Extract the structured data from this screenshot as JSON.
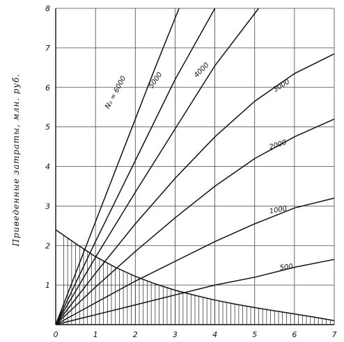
{
  "chart_data": {
    "type": "line",
    "ylabel": "Приведенные затраты, млн. руб.",
    "xlabel": "",
    "xlim": [
      0,
      7
    ],
    "ylim": [
      0,
      8
    ],
    "x_ticks": [
      0,
      1,
      2,
      3,
      4,
      5,
      6,
      7
    ],
    "y_tick_labels": [
      "",
      "1",
      "2",
      "3",
      "4",
      "5",
      "6",
      "7",
      "8"
    ],
    "grid": true,
    "series": [
      {
        "name": "N₀ = 6000",
        "x": [
          0,
          0.5,
          1,
          1.5,
          2,
          2.5,
          3.1
        ],
        "y": [
          0,
          1.3,
          2.6,
          3.9,
          5.2,
          6.5,
          8.0
        ]
      },
      {
        "name": "5000",
        "x": [
          0,
          0.5,
          1,
          2,
          3,
          4.0
        ],
        "y": [
          0,
          1.05,
          2.1,
          4.15,
          6.2,
          8.0
        ]
      },
      {
        "name": "4000",
        "x": [
          0,
          0.5,
          1,
          2,
          3,
          4,
          5.1
        ],
        "y": [
          0,
          0.85,
          1.7,
          3.35,
          4.95,
          6.55,
          8.0
        ]
      },
      {
        "name": "3000",
        "x": [
          0,
          1,
          2,
          3,
          4,
          5,
          6,
          7
        ],
        "y": [
          0,
          1.3,
          2.55,
          3.7,
          4.75,
          5.65,
          6.35,
          6.85
        ]
      },
      {
        "name": "2000",
        "x": [
          0,
          1,
          2,
          3,
          4,
          5,
          6,
          7
        ],
        "y": [
          0,
          0.95,
          1.85,
          2.7,
          3.5,
          4.2,
          4.75,
          5.2
        ]
      },
      {
        "name": "1000",
        "x": [
          0,
          1,
          2,
          3,
          4,
          5,
          6,
          7
        ],
        "y": [
          0,
          0.55,
          1.1,
          1.6,
          2.1,
          2.55,
          2.95,
          3.2
        ]
      },
      {
        "name": "500",
        "x": [
          0,
          1,
          2,
          3,
          4,
          5,
          6,
          7
        ],
        "y": [
          0,
          0.25,
          0.5,
          0.75,
          1.0,
          1.2,
          1.45,
          1.65
        ]
      },
      {
        "name": "",
        "hatched_below": true,
        "x": [
          0,
          0.5,
          1,
          1.5,
          2,
          2.5,
          3,
          3.5,
          4,
          4.5,
          5,
          5.5,
          6,
          6.5,
          7
        ],
        "y": [
          2.4,
          2.05,
          1.72,
          1.45,
          1.22,
          1.03,
          0.87,
          0.74,
          0.62,
          0.52,
          0.43,
          0.35,
          0.27,
          0.19,
          0.1
        ]
      }
    ],
    "annotations": [
      "N₀ = 6000",
      "5000",
      "4000",
      "3000",
      "2000",
      "1000",
      "500"
    ]
  }
}
